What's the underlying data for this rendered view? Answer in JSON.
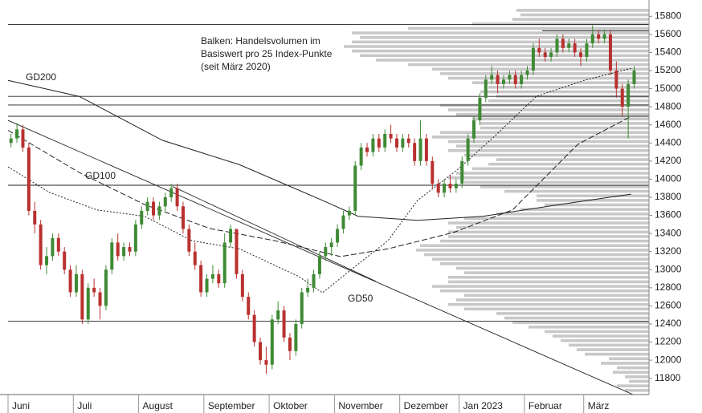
{
  "chart_data": {
    "type": "candlestick",
    "annotation": [
      "Balken: Handelsvolumen im",
      "Basiswert pro 25 Index-Punkte",
      "(seit März 2020)"
    ],
    "xlim": [
      0,
      108
    ],
    "xticks": [
      {
        "value": 0,
        "label": "Juni"
      },
      {
        "value": 11,
        "label": "Juli"
      },
      {
        "value": 22,
        "label": "August"
      },
      {
        "value": 33,
        "label": "September"
      },
      {
        "value": 44,
        "label": "Oktober"
      },
      {
        "value": 55,
        "label": "November"
      },
      {
        "value": 66,
        "label": "Dezember"
      },
      {
        "value": 76,
        "label": "Jan 2023"
      },
      {
        "value": 87,
        "label": "Februar"
      },
      {
        "value": 97,
        "label": "März"
      }
    ],
    "ylim": [
      11620,
      15980
    ],
    "yticks": [
      11800,
      12000,
      12200,
      12400,
      12600,
      12800,
      13000,
      13200,
      13400,
      13600,
      13800,
      14000,
      14200,
      14400,
      14600,
      14800,
      15000,
      15200,
      15400,
      15600,
      15800
    ],
    "up_color": "#3f8a35",
    "down_color": "#b8312f",
    "candles": [
      [
        14400,
        14500,
        14350,
        14450
      ],
      [
        14450,
        14620,
        14400,
        14550
      ],
      [
        14550,
        14600,
        14300,
        14350
      ],
      [
        14350,
        14400,
        13600,
        13650
      ],
      [
        13650,
        13750,
        13400,
        13500
      ],
      [
        13500,
        13550,
        13000,
        13050
      ],
      [
        13050,
        13250,
        12950,
        13150
      ],
      [
        13150,
        13400,
        13100,
        13350
      ],
      [
        13350,
        13400,
        13150,
        13200
      ],
      [
        13200,
        13250,
        12950,
        13000
      ],
      [
        13000,
        13050,
        12700,
        12750
      ],
      [
        12750,
        13050,
        12700,
        12950
      ],
      [
        12950,
        13000,
        12400,
        12450
      ],
      [
        12450,
        12850,
        12400,
        12800
      ],
      [
        12800,
        12900,
        12700,
        12750
      ],
      [
        12750,
        12800,
        12450,
        12600
      ],
      [
        12600,
        13050,
        12550,
        13000
      ],
      [
        13000,
        13350,
        12950,
        13300
      ],
      [
        13300,
        13400,
        13100,
        13150
      ],
      [
        13150,
        13300,
        13100,
        13250
      ],
      [
        13250,
        13300,
        13150,
        13200
      ],
      [
        13200,
        13550,
        13150,
        13500
      ],
      [
        13500,
        13700,
        13450,
        13650
      ],
      [
        13650,
        13800,
        13600,
        13750
      ],
      [
        13750,
        13800,
        13550,
        13600
      ],
      [
        13600,
        13750,
        13550,
        13700
      ],
      [
        13700,
        13850,
        13650,
        13800
      ],
      [
        13800,
        13950,
        13750,
        13900
      ],
      [
        13900,
        13950,
        13650,
        13700
      ],
      [
        13700,
        13750,
        13400,
        13450
      ],
      [
        13450,
        13500,
        13150,
        13200
      ],
      [
        13200,
        13300,
        13000,
        13050
      ],
      [
        13050,
        13100,
        12700,
        12750
      ],
      [
        12750,
        12950,
        12700,
        12900
      ],
      [
        12900,
        13050,
        12850,
        12950
      ],
      [
        12950,
        13000,
        12800,
        12850
      ],
      [
        12850,
        13400,
        12800,
        13300
      ],
      [
        13300,
        13500,
        13250,
        13450
      ],
      [
        13450,
        13450,
        12900,
        12950
      ],
      [
        12950,
        13000,
        12650,
        12700
      ],
      [
        12700,
        12750,
        12450,
        12500
      ],
      [
        12500,
        12550,
        12150,
        12200
      ],
      [
        12200,
        12250,
        11950,
        12000
      ],
      [
        12000,
        12150,
        11850,
        11950
      ],
      [
        11950,
        12500,
        11900,
        12450
      ],
      [
        12450,
        12650,
        12400,
        12550
      ],
      [
        12550,
        12600,
        12200,
        12250
      ],
      [
        12250,
        12300,
        12000,
        12100
      ],
      [
        12100,
        12450,
        12050,
        12400
      ],
      [
        12400,
        12800,
        12350,
        12750
      ],
      [
        12750,
        12900,
        12700,
        12800
      ],
      [
        12800,
        13000,
        12750,
        12950
      ],
      [
        12950,
        13200,
        12900,
        13150
      ],
      [
        13150,
        13300,
        13100,
        13250
      ],
      [
        13250,
        13350,
        13150,
        13300
      ],
      [
        13300,
        13500,
        13250,
        13450
      ],
      [
        13450,
        13650,
        13400,
        13600
      ],
      [
        13600,
        13700,
        13550,
        13650
      ],
      [
        13650,
        14200,
        13600,
        14150
      ],
      [
        14150,
        14400,
        14100,
        14350
      ],
      [
        14350,
        14400,
        14250,
        14300
      ],
      [
        14300,
        14500,
        14250,
        14450
      ],
      [
        14450,
        14500,
        14300,
        14350
      ],
      [
        14350,
        14550,
        14300,
        14500
      ],
      [
        14500,
        14600,
        14400,
        14450
      ],
      [
        14450,
        14500,
        14300,
        14350
      ],
      [
        14350,
        14500,
        14300,
        14450
      ],
      [
        14450,
        14500,
        14350,
        14400
      ],
      [
        14400,
        14450,
        14150,
        14200
      ],
      [
        14200,
        14650,
        14150,
        14450
      ],
      [
        14450,
        14500,
        14150,
        14200
      ],
      [
        14200,
        14250,
        13900,
        13950
      ],
      [
        13950,
        14000,
        13800,
        13850
      ],
      [
        13850,
        14000,
        13800,
        13950
      ],
      [
        13950,
        14050,
        13850,
        13900
      ],
      [
        13900,
        14000,
        13850,
        13950
      ],
      [
        13950,
        14250,
        13900,
        14200
      ],
      [
        14200,
        14500,
        14150,
        14450
      ],
      [
        14450,
        14700,
        14400,
        14650
      ],
      [
        14650,
        14950,
        14600,
        14900
      ],
      [
        14900,
        15150,
        14850,
        15100
      ],
      [
        15100,
        15250,
        15050,
        15150
      ],
      [
        15150,
        15200,
        14950,
        15050
      ],
      [
        15050,
        15150,
        15000,
        15100
      ],
      [
        15100,
        15200,
        15050,
        15150
      ],
      [
        15150,
        15200,
        15000,
        15050
      ],
      [
        15050,
        15200,
        15000,
        15150
      ],
      [
        15150,
        15250,
        15100,
        15200
      ],
      [
        15200,
        15500,
        15150,
        15450
      ],
      [
        15450,
        15550,
        15350,
        15400
      ],
      [
        15400,
        15450,
        15300,
        15350
      ],
      [
        15350,
        15450,
        15300,
        15400
      ],
      [
        15400,
        15600,
        15350,
        15550
      ],
      [
        15550,
        15600,
        15400,
        15450
      ],
      [
        15450,
        15550,
        15400,
        15500
      ],
      [
        15500,
        15550,
        15350,
        15400
      ],
      [
        15400,
        15450,
        15250,
        15350
      ],
      [
        15350,
        15550,
        15300,
        15500
      ],
      [
        15500,
        15700,
        15450,
        15600
      ],
      [
        15600,
        15650,
        15500,
        15550
      ],
      [
        15550,
        15650,
        15500,
        15600
      ],
      [
        15600,
        15650,
        15150,
        15200
      ],
      [
        15200,
        15300,
        14900,
        15000
      ],
      [
        15000,
        15050,
        14700,
        14800
      ],
      [
        14800,
        15100,
        14450,
        15050
      ],
      [
        15050,
        15250,
        15000,
        15200
      ]
    ],
    "overlays": [
      {
        "name": "GD200",
        "style": "solid",
        "x": [
          0,
          12,
          26,
          39,
          53,
          59,
          69,
          80,
          93,
          105
        ],
        "values": [
          15092,
          14915,
          14430,
          14160,
          13765,
          13590,
          13545,
          13590,
          13720,
          13835
        ]
      },
      {
        "name": "GD100",
        "style": "dashed",
        "x": [
          0,
          12,
          23,
          34,
          45,
          56,
          64,
          75,
          85,
          96,
          105
        ],
        "values": [
          14540,
          14074,
          13720,
          13455,
          13320,
          13145,
          13230,
          13410,
          13660,
          14385,
          14695
        ]
      },
      {
        "name": "GD50",
        "style": "dotted",
        "x": [
          0,
          7,
          15,
          23,
          31,
          39,
          49,
          53,
          58,
          64,
          69,
          76,
          82,
          89,
          97,
          105
        ],
        "values": [
          14136,
          13853,
          13660,
          13590,
          13320,
          13230,
          12924,
          12745,
          13010,
          13320,
          13765,
          14120,
          14475,
          14915,
          15090,
          15225
        ]
      }
    ],
    "lines": [
      {
        "x": [
          0,
          108
        ],
        "values": [
          15710,
          15710
        ]
      },
      {
        "x": [
          90,
          108
        ],
        "values": [
          15640,
          15640
        ]
      },
      {
        "x": [
          0,
          108
        ],
        "values": [
          14915,
          14915
        ]
      },
      {
        "x": [
          0,
          108
        ],
        "values": [
          14820,
          14820
        ]
      },
      {
        "x": [
          0,
          108
        ],
        "values": [
          14695,
          14695
        ]
      },
      {
        "x": [
          0,
          108
        ],
        "values": [
          13933,
          13933
        ]
      },
      {
        "x": [
          0,
          108
        ],
        "values": [
          12430,
          12430
        ]
      },
      {
        "x": [
          0,
          106
        ],
        "values": [
          14650,
          11600
        ]
      },
      {
        "x": [
          27.7,
          62
        ],
        "values": [
          13920,
          12870
        ]
      }
    ],
    "volume_profile": {
      "color": "#c8c8c8",
      "xlim": [
        0,
        400
      ],
      "levels": [
        11650,
        11700,
        11750,
        11800,
        11850,
        11900,
        11950,
        12000,
        12050,
        12100,
        12150,
        12200,
        12250,
        12300,
        12350,
        12400,
        12450,
        12500,
        12550,
        12600,
        12650,
        12700,
        12750,
        12800,
        12850,
        12900,
        12950,
        13000,
        13050,
        13100,
        13150,
        13200,
        13250,
        13300,
        13350,
        13400,
        13450,
        13500,
        13550,
        13600,
        13650,
        13700,
        13750,
        13800,
        13850,
        13900,
        13950,
        14000,
        14050,
        14100,
        14150,
        14200,
        14250,
        14300,
        14350,
        14400,
        14450,
        14500,
        14550,
        14600,
        14650,
        14700,
        14750,
        14800,
        14850,
        14900,
        14950,
        15000,
        15050,
        15100,
        15150,
        15200,
        15250,
        15300,
        15350,
        15400,
        15450,
        15500,
        15550,
        15600,
        15650,
        15700,
        15750,
        15800,
        15850
      ],
      "values": [
        30,
        40,
        25,
        30,
        45,
        40,
        60,
        50,
        80,
        90,
        100,
        110,
        120,
        130,
        150,
        170,
        180,
        190,
        230,
        250,
        240,
        230,
        260,
        270,
        250,
        250,
        230,
        240,
        260,
        270,
        280,
        290,
        285,
        260,
        250,
        250,
        240,
        250,
        230,
        190,
        160,
        130,
        140,
        140,
        180,
        210,
        230,
        250,
        240,
        220,
        200,
        190,
        230,
        250,
        240,
        250,
        270,
        260,
        210,
        210,
        220,
        240,
        250,
        260,
        200,
        190,
        210,
        200,
        220,
        250,
        260,
        270,
        300,
        340,
        360,
        370,
        380,
        370,
        360,
        370,
        300,
        220,
        170,
        160,
        165
      ]
    }
  }
}
